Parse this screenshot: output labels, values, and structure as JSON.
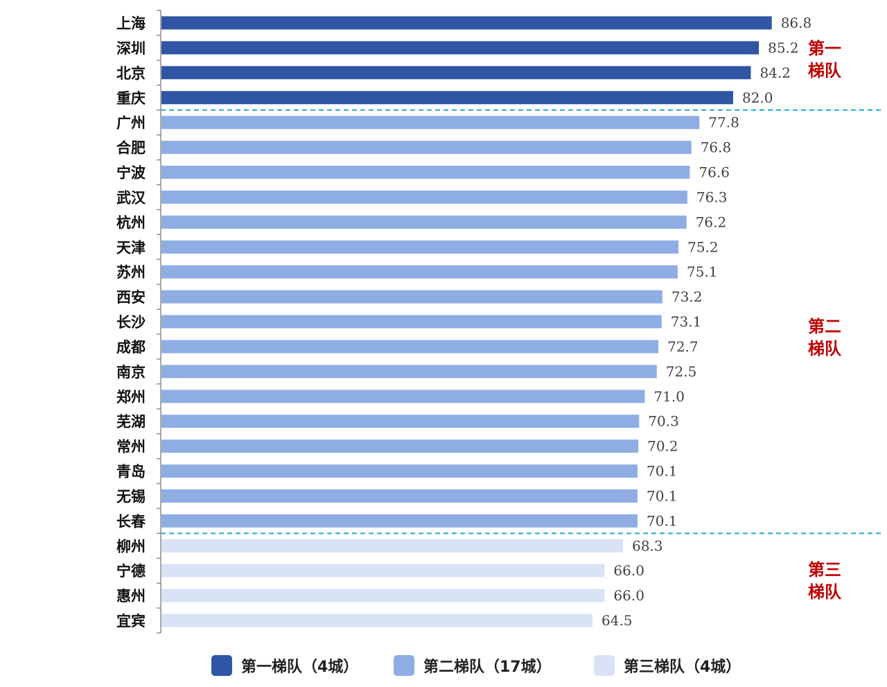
{
  "chart_data": {
    "type": "bar",
    "orientation": "horizontal",
    "title": "",
    "xlabel": "",
    "ylabel": "",
    "xlim": [
      0,
      90
    ],
    "grid": false,
    "legend_placement": "bottom-center",
    "categories": [
      "上海",
      "深圳",
      "北京",
      "重庆",
      "广州",
      "合肥",
      "宁波",
      "武汉",
      "杭州",
      "天津",
      "苏州",
      "西安",
      "长沙",
      "成都",
      "南京",
      "郑州",
      "芜湖",
      "常州",
      "青岛",
      "无锡",
      "长春",
      "柳州",
      "宁德",
      "惠州",
      "宜宾"
    ],
    "values": [
      86.8,
      85.2,
      84.2,
      82.0,
      77.8,
      76.8,
      76.6,
      76.3,
      76.2,
      75.2,
      75.1,
      73.2,
      73.1,
      72.7,
      72.5,
      71.0,
      70.3,
      70.2,
      70.1,
      70.1,
      70.1,
      68.3,
      66.0,
      66.0,
      64.5
    ],
    "value_labels": [
      "86.8",
      "85.2",
      "84.2",
      "82.0",
      "77.8",
      "76.8",
      "76.6",
      "76.3",
      "76.2",
      "75.2",
      "75.1",
      "73.2",
      "73.1",
      "72.7",
      "72.5",
      "71.0",
      "70.3",
      "70.2",
      "70.1",
      "70.1",
      "70.1",
      "68.3",
      "66.0",
      "66.0",
      "64.5"
    ],
    "tiers": [
      {
        "name": "第一梯队（4城）",
        "side_label": [
          "第一",
          "梯队"
        ],
        "start": 0,
        "count": 4,
        "color": "#2f55a4"
      },
      {
        "name": "第二梯队（17城）",
        "side_label": [
          "第二",
          "梯队"
        ],
        "start": 4,
        "count": 17,
        "color": "#8eaee3"
      },
      {
        "name": "第三梯队（4城）",
        "side_label": [
          "第三",
          "梯队"
        ],
        "start": 21,
        "count": 4,
        "color": "#d9e3f6"
      }
    ],
    "separator_color": "#1fa7e0",
    "tier_label_color": "#c00000"
  }
}
